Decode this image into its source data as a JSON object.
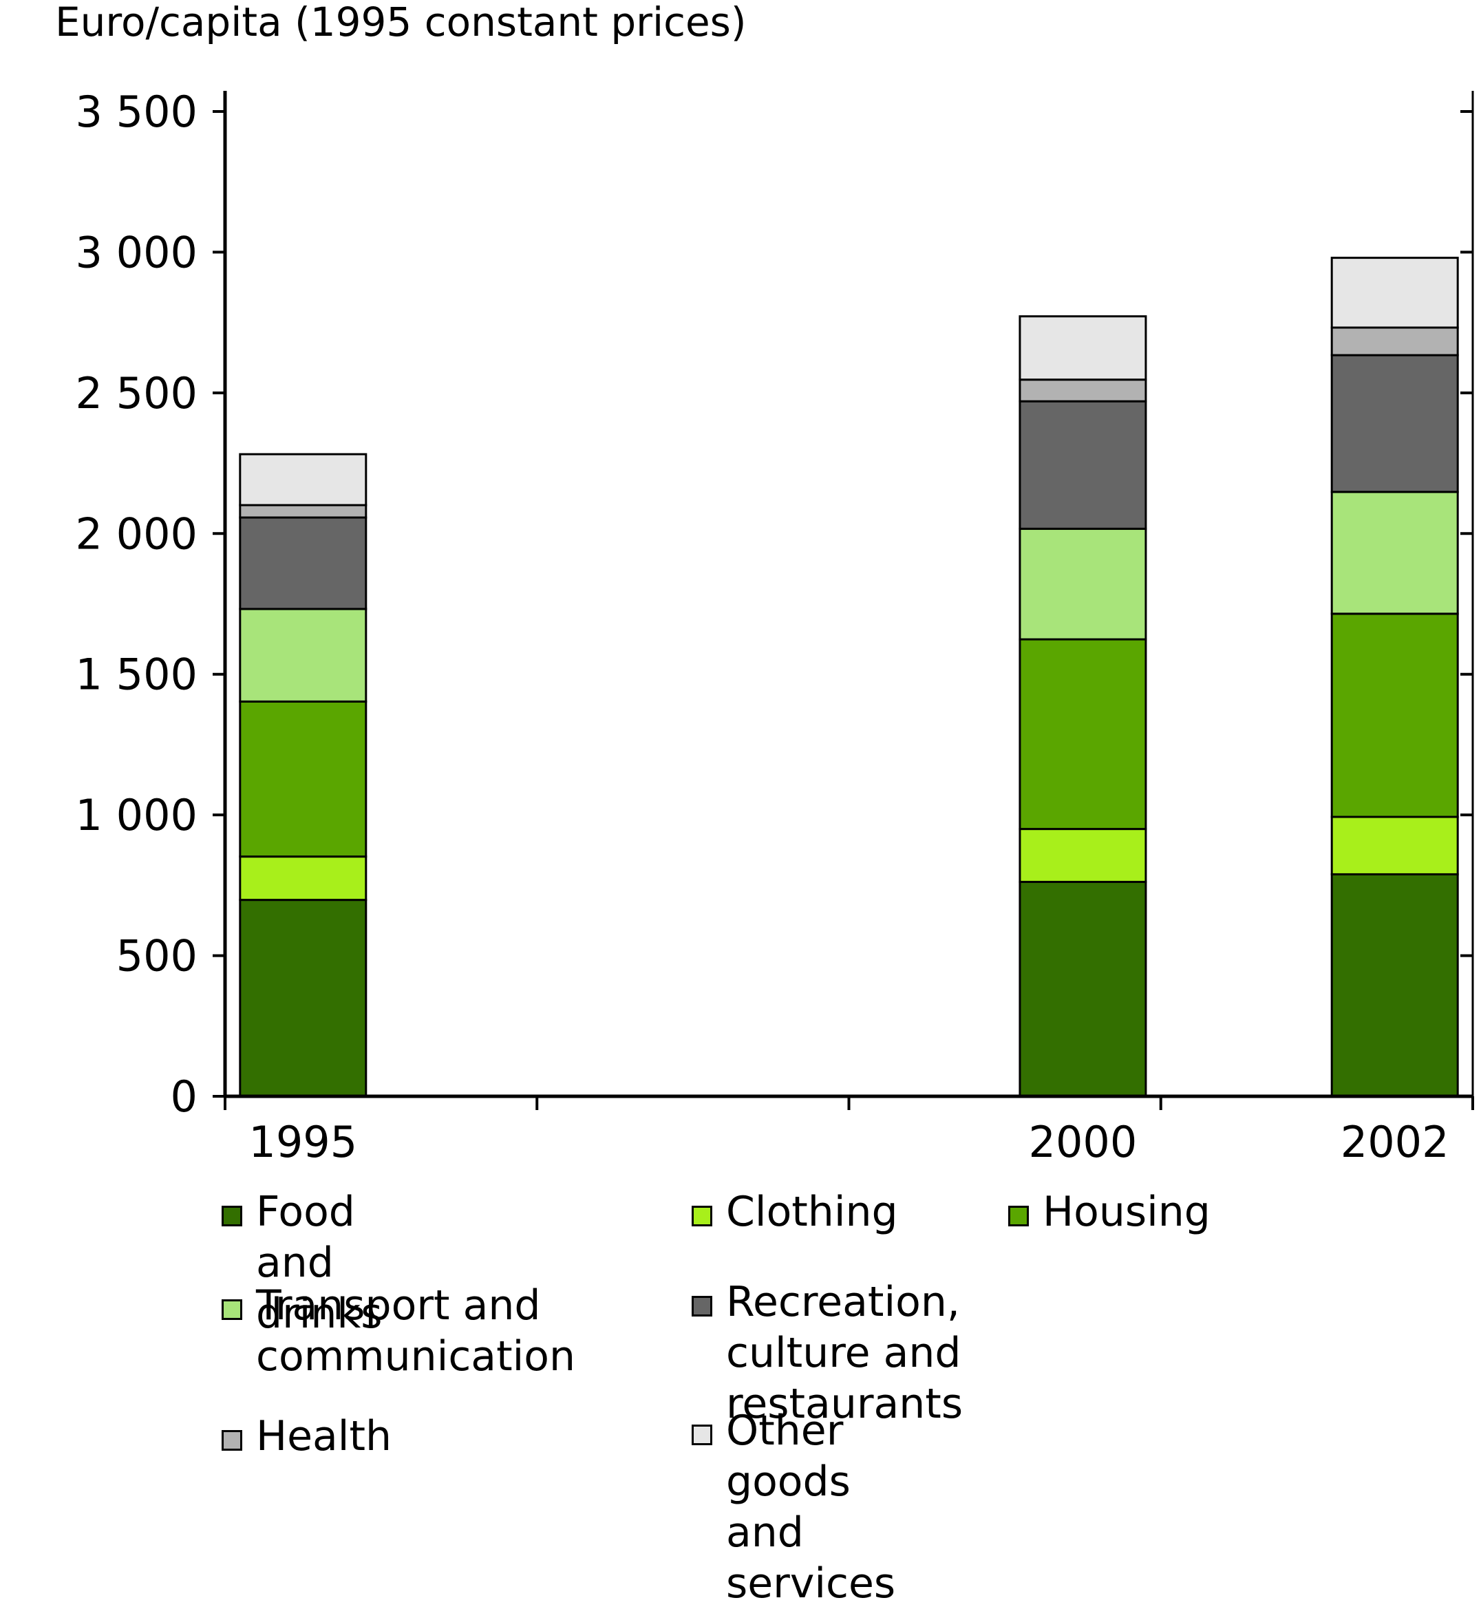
{
  "chart_data": {
    "type": "bar",
    "stacked": true,
    "title": "",
    "ylabel": "Euro/capita (1995 constant prices)",
    "xlabel": "",
    "ylim": [
      0,
      3500
    ],
    "yticks": [
      0,
      500,
      1000,
      1500,
      2000,
      2500,
      3000,
      3500
    ],
    "ytick_labels": [
      "0",
      "500",
      "1 000",
      "1 500",
      "2 000",
      "2 500",
      "3 000",
      "3 500"
    ],
    "categories": [
      "1995",
      "2000",
      "2002"
    ],
    "x_positions": [
      1995,
      2000,
      2002
    ],
    "xlim": [
      1994.5,
      2002.5
    ],
    "grid": false,
    "legend_position": "bottom",
    "series": [
      {
        "name": "Food and drinks",
        "color": "#336f00",
        "values": [
          698,
          762,
          789
        ]
      },
      {
        "name": "Clothing",
        "color": "#a8ef1b",
        "values": [
          154,
          188,
          204
        ]
      },
      {
        "name": "Housing",
        "color": "#5aa600",
        "values": [
          551,
          674,
          722
        ]
      },
      {
        "name": "Transport and communication",
        "color": "#a8e47a",
        "values": [
          329,
          393,
          433
        ]
      },
      {
        "name": "Recreation, culture and restaurants",
        "color": "#666666",
        "values": [
          325,
          453,
          486
        ]
      },
      {
        "name": "Health",
        "color": "#b2b2b2",
        "values": [
          44,
          77,
          98
        ]
      },
      {
        "name": "Other goods and services",
        "color": "#e6e6e6",
        "values": [
          181,
          225,
          248
        ]
      }
    ]
  },
  "legend": [
    {
      "label": "Food and drinks"
    },
    {
      "label": "Clothing"
    },
    {
      "label": "Housing"
    },
    {
      "label": "Transport and\ncommunication"
    },
    {
      "label": "Recreation,\nculture and restaurants"
    },
    {
      "label": "Health"
    },
    {
      "label": "Other goods and services"
    }
  ]
}
